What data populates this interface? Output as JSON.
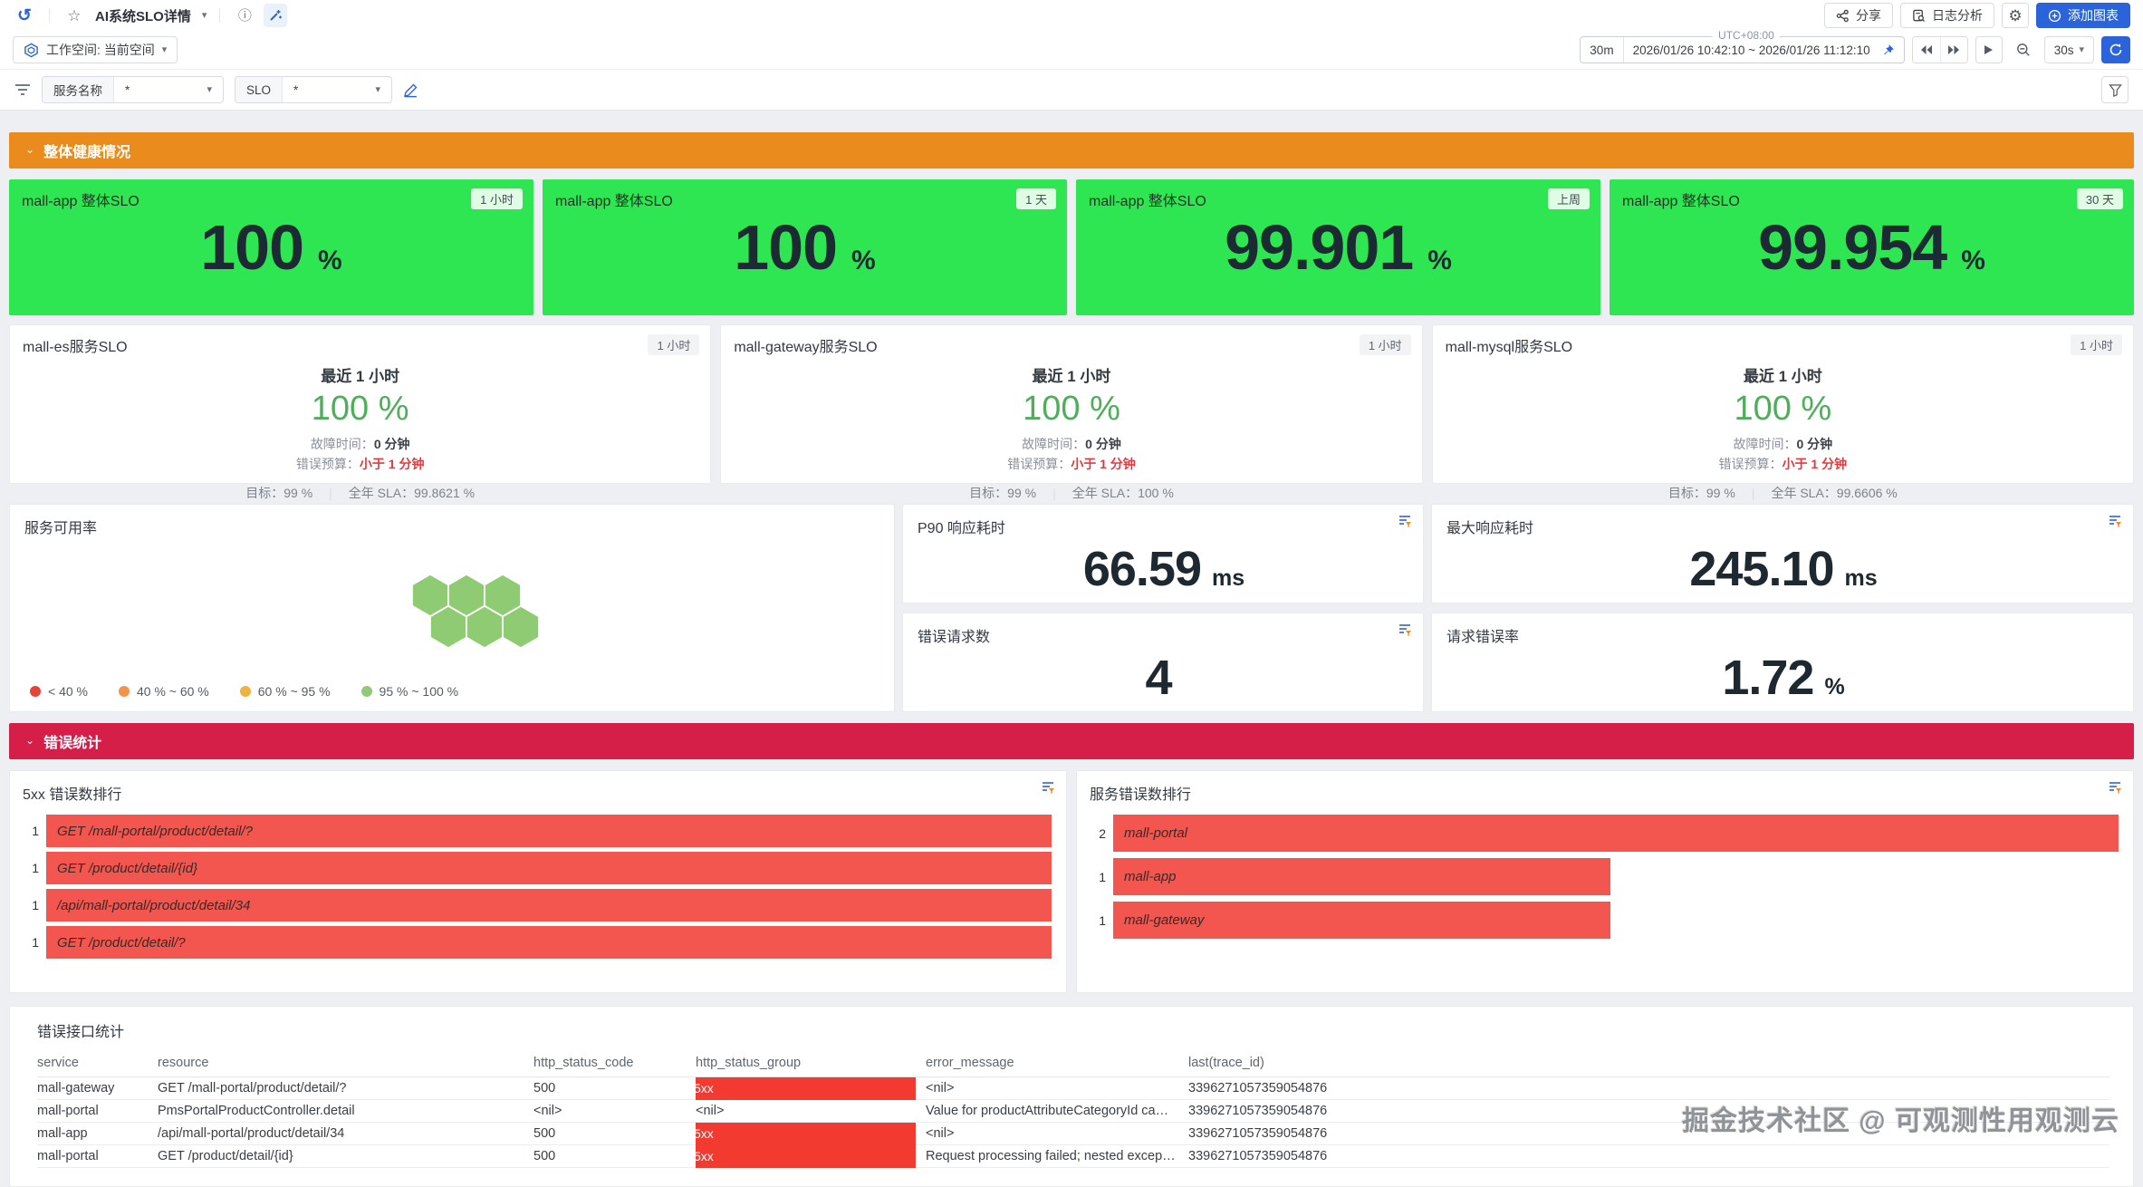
{
  "header": {
    "title": "AI系统SLO详情",
    "share": "分享",
    "log_analysis": "日志分析",
    "add_chart": "添加图表",
    "workspace": "工作空间: 当前空间",
    "timezone": "UTC+08:00",
    "range_shortcut": "30m",
    "time_range": "2026/01/26 10:42:10 ~ 2026/01/26 11:12:10",
    "refresh_interval": "30s"
  },
  "filters": {
    "service_label": "服务名称",
    "service_value": "*",
    "slo_label": "SLO",
    "slo_value": "*"
  },
  "sections": {
    "health_title": "整体健康情况",
    "errors_title": "错误统计"
  },
  "colors": {
    "green_card": "#2ee652",
    "orange_header": "#ea8b1e",
    "red_header": "#d51f49",
    "bar_red": "#f2564f",
    "cell_red": "#f23a31",
    "accent_blue": "#2b63da",
    "value_green": "#4fae5c",
    "budget_red": "#e2393f"
  },
  "overall_cards": [
    {
      "title": "mall-app 整体SLO",
      "badge": "1 小时",
      "value": "100",
      "unit": "%"
    },
    {
      "title": "mall-app 整体SLO",
      "badge": "1 天",
      "value": "100",
      "unit": "%"
    },
    {
      "title": "mall-app 整体SLO",
      "badge": "上周",
      "value": "99.901",
      "unit": "%"
    },
    {
      "title": "mall-app 整体SLO",
      "badge": "30 天",
      "value": "99.954",
      "unit": "%"
    }
  ],
  "service_cards": [
    {
      "title": "mall-es服务SLO",
      "badge": "1 小时",
      "period": "最近 1 小时",
      "value": "100 %",
      "downtime_label": "故障时间：",
      "downtime": "0 分钟",
      "budget_label": "错误预算：",
      "budget": "小于 1 分钟",
      "target_label": "目标：99 %",
      "sla_label": "全年 SLA：99.8621 %"
    },
    {
      "title": "mall-gateway服务SLO",
      "badge": "1 小时",
      "period": "最近 1 小时",
      "value": "100 %",
      "downtime_label": "故障时间：",
      "downtime": "0 分钟",
      "budget_label": "错误预算：",
      "budget": "小于 1 分钟",
      "target_label": "目标：99 %",
      "sla_label": "全年 SLA：100 %"
    },
    {
      "title": "mall-mysql服务SLO",
      "badge": "1 小时",
      "period": "最近 1 小时",
      "value": "100 %",
      "downtime_label": "故障时间：",
      "downtime": "0 分钟",
      "budget_label": "错误预算：",
      "budget": "小于 1 分钟",
      "target_label": "目标：99 %",
      "sla_label": "全年 SLA：99.6606 %"
    }
  ],
  "availability": {
    "title": "服务可用率",
    "legend": [
      {
        "label": "< 40 %",
        "color": "#e8413c"
      },
      {
        "label": "40 % ~ 60 %",
        "color": "#f0944d"
      },
      {
        "label": "60 % ~ 95 %",
        "color": "#f0b13e"
      },
      {
        "label": "95 % ~ 100 %",
        "color": "#90c978"
      }
    ],
    "chart_data": {
      "type": "honeycomb",
      "cells": 6,
      "cell_bucket": "95 % ~ 100 %",
      "cell_color": "#8fcb72"
    }
  },
  "stats": [
    {
      "title": "P90 响应耗时",
      "value": "66.59",
      "unit": "ms",
      "has_icon": true
    },
    {
      "title": "最大响应耗时",
      "value": "245.10",
      "unit": "ms",
      "has_icon": true
    },
    {
      "title": "错误请求数",
      "value": "4",
      "unit": "",
      "has_icon": true
    },
    {
      "title": "请求错误率",
      "value": "1.72",
      "unit": "%",
      "has_icon": false
    }
  ],
  "rank_5xx": {
    "title": "5xx 错误数排行",
    "chart_data": {
      "type": "bar",
      "orientation": "horizontal",
      "categories": [
        "GET /mall-portal/product/detail/?",
        "GET /product/detail/{id}",
        "/api/mall-portal/product/detail/34",
        "GET /product/detail/?"
      ],
      "values": [
        1,
        1,
        1,
        1
      ],
      "xmax": 1
    },
    "bars": [
      {
        "value": "1",
        "label": "GET /mall-portal/product/detail/?",
        "pct": 100
      },
      {
        "value": "1",
        "label": "GET /product/detail/{id}",
        "pct": 100
      },
      {
        "value": "1",
        "label": "/api/mall-portal/product/detail/34",
        "pct": 100
      },
      {
        "value": "1",
        "label": "GET /product/detail/?",
        "pct": 100
      }
    ]
  },
  "rank_service": {
    "title": "服务错误数排行",
    "chart_data": {
      "type": "bar",
      "orientation": "horizontal",
      "categories": [
        "mall-portal",
        "mall-app",
        "mall-gateway"
      ],
      "values": [
        2,
        1,
        1
      ],
      "xmax": 2
    },
    "bars": [
      {
        "value": "2",
        "label": "mall-portal",
        "pct": 100
      },
      {
        "value": "1",
        "label": "mall-app",
        "pct": 49.5
      },
      {
        "value": "1",
        "label": "mall-gateway",
        "pct": 49.5
      }
    ]
  },
  "error_table": {
    "title": "错误接口统计",
    "columns": [
      "service",
      "resource",
      "http_status_code",
      "http_status_group",
      "error_message",
      "last(trace_id)"
    ],
    "rows": [
      {
        "service": "mall-gateway",
        "resource": "GET /mall-portal/product/detail/?",
        "code": "500",
        "group": "5xx",
        "group_highlight": true,
        "message": "<nil>",
        "trace": "3396271057359054876"
      },
      {
        "service": "mall-portal",
        "resource": "PmsPortalProductController.detail",
        "code": "<nil>",
        "group": "<nil>",
        "group_highlight": false,
        "message": "Value for productAttributeCategoryId canno...",
        "trace": "3396271057359054876"
      },
      {
        "service": "mall-app",
        "resource": "/api/mall-portal/product/detail/34",
        "code": "500",
        "group": "5xx",
        "group_highlight": true,
        "message": "<nil>",
        "trace": "3396271057359054876"
      },
      {
        "service": "mall-portal",
        "resource": "GET /product/detail/{id}",
        "code": "500",
        "group": "5xx",
        "group_highlight": true,
        "message": "Request processing failed; nested exception ...",
        "trace": "3396271057359054876"
      }
    ]
  },
  "watermark": "掘金技术社区 @ 可观测性用观测云"
}
